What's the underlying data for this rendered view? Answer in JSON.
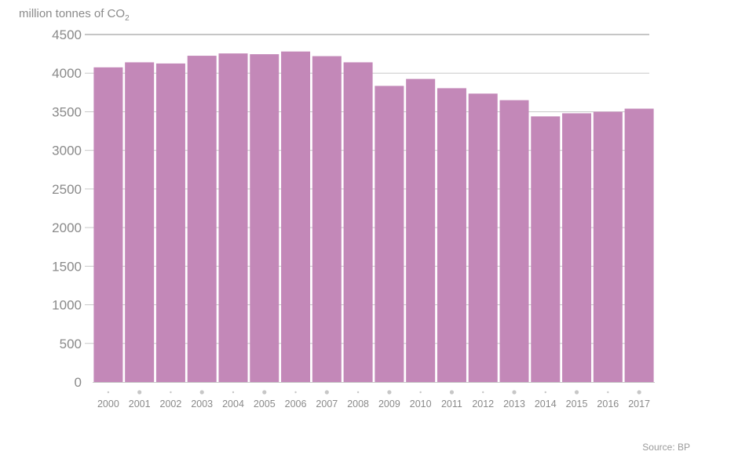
{
  "colors": {
    "bar": "#c388b8",
    "grid": "#c9c9c9",
    "text": "#8a8a8a",
    "tick_dot": "#c7c7c7"
  },
  "unit_label": {
    "prefix": "million tonnes of CO",
    "subscript": "2"
  },
  "source": "Source: BP",
  "chart_data": {
    "type": "bar",
    "categories": [
      "2000",
      "2001",
      "2002",
      "2003",
      "2004",
      "2005",
      "2006",
      "2007",
      "2008",
      "2009",
      "2010",
      "2011",
      "2012",
      "2013",
      "2014",
      "2015",
      "2016",
      "2017"
    ],
    "values": [
      4075,
      4140,
      4125,
      4225,
      4255,
      4245,
      4280,
      4220,
      4140,
      3835,
      3925,
      3805,
      3735,
      3650,
      3440,
      3480,
      3500,
      3540
    ],
    "ylim": [
      0,
      4500
    ],
    "yticks": [
      0,
      500,
      1000,
      1500,
      2000,
      2500,
      3000,
      3500,
      4000,
      4500
    ],
    "ytick_labels": [
      "0",
      "500",
      "1000",
      "1500",
      "2000",
      "2500",
      "3000",
      "3500",
      "4000",
      "4500"
    ],
    "grid": true,
    "tick_markers": "dots",
    "legend": "none"
  }
}
